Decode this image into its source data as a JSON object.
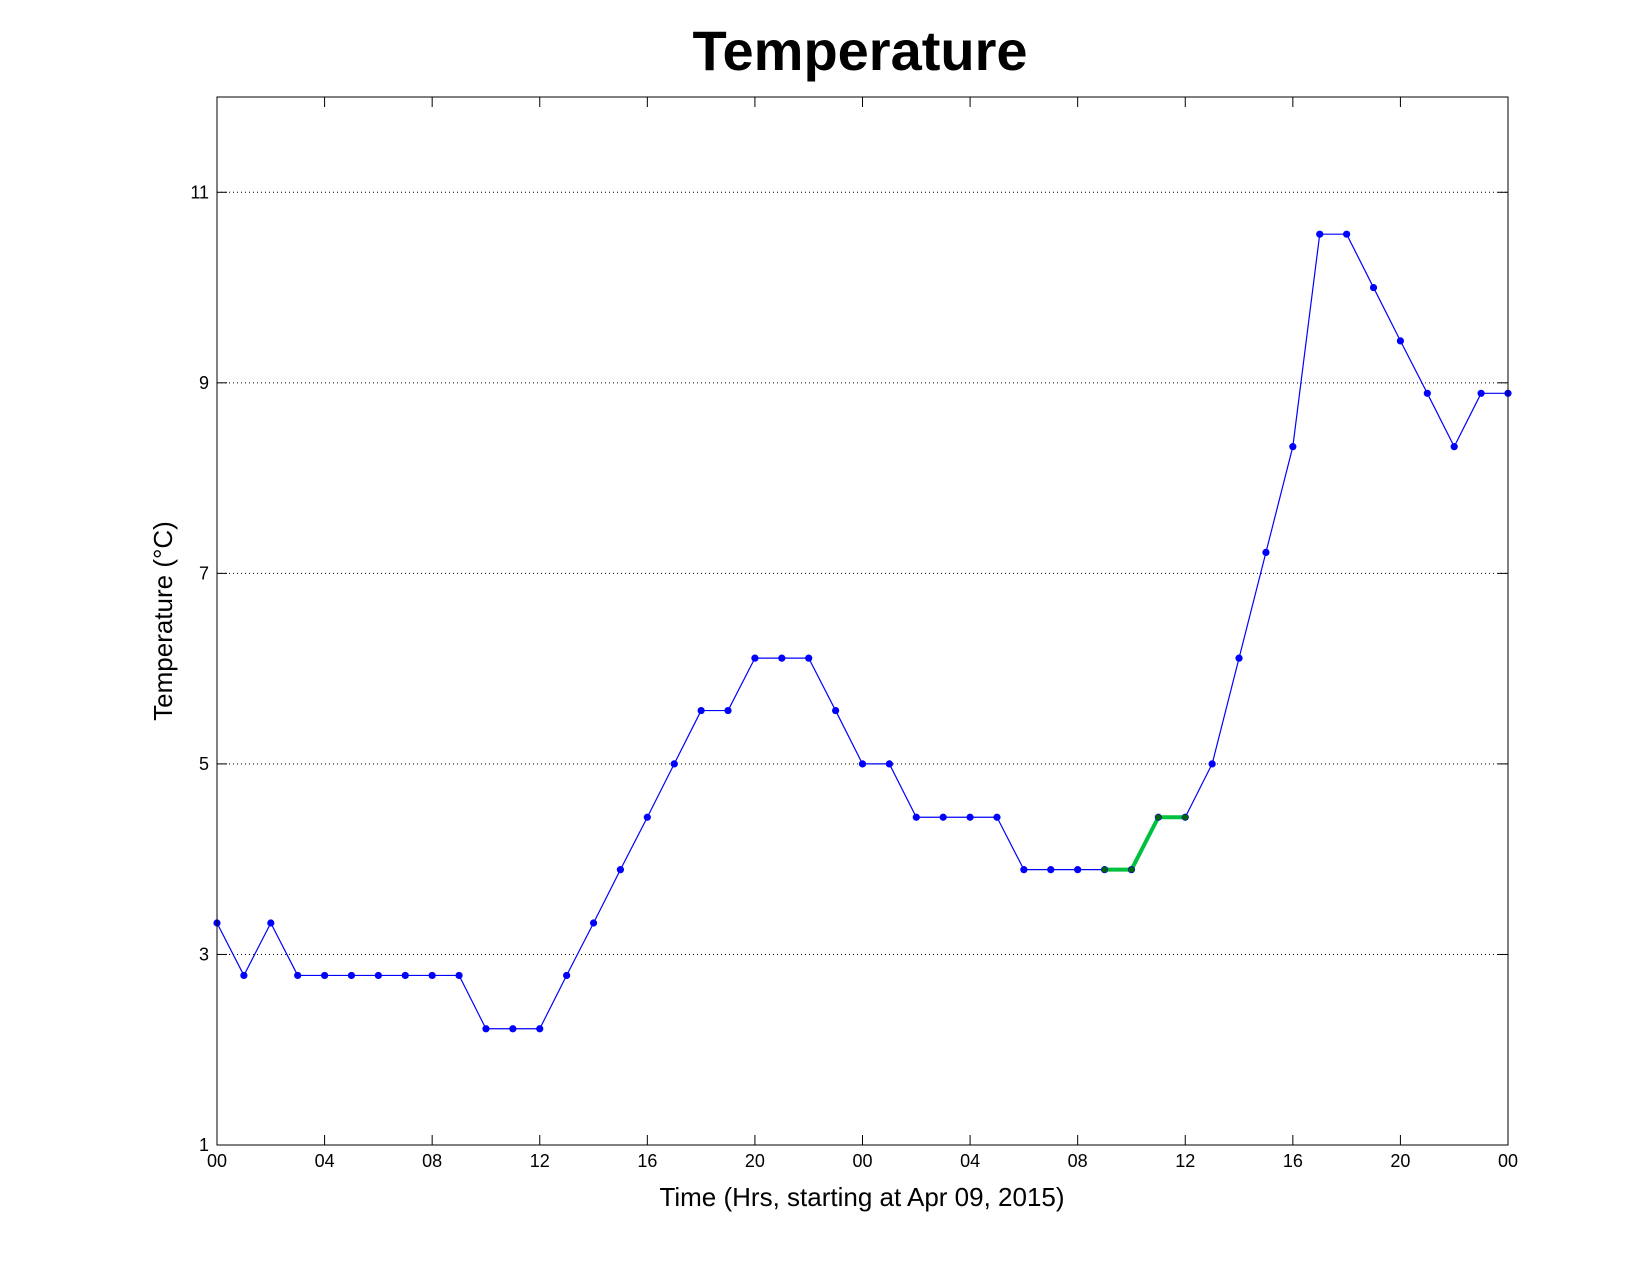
{
  "chart_data": {
    "type": "line",
    "title": "Temperature",
    "xlabel": "Time (Hrs, starting at Apr 09, 2015)",
    "ylabel": "Temperature (°C)",
    "xlim": [
      0,
      48
    ],
    "ylim": [
      1,
      12
    ],
    "x_ticks": [
      0,
      4,
      8,
      12,
      16,
      20,
      24,
      28,
      32,
      36,
      40,
      44,
      48
    ],
    "x_tick_labels": [
      "00",
      "04",
      "08",
      "12",
      "16",
      "20",
      "00",
      "04",
      "08",
      "12",
      "16",
      "20",
      "00"
    ],
    "y_ticks": [
      1,
      3,
      5,
      7,
      9,
      11
    ],
    "y_tick_labels": [
      "1",
      "3",
      "5",
      "7",
      "9",
      "11"
    ],
    "grid": "y-dotted",
    "x": [
      0,
      1,
      2,
      3,
      4,
      5,
      6,
      7,
      8,
      9,
      10,
      11,
      12,
      13,
      14,
      15,
      16,
      17,
      18,
      19,
      20,
      21,
      22,
      23,
      24,
      25,
      26,
      27,
      28,
      29,
      30,
      31,
      32,
      33,
      34,
      35,
      36,
      37,
      38,
      39,
      40,
      41,
      42,
      43,
      44,
      45,
      46,
      47,
      48
    ],
    "series": [
      {
        "color": "#0000ff",
        "values": [
          3.33,
          2.78,
          3.33,
          2.78,
          2.78,
          2.78,
          2.78,
          2.78,
          2.78,
          2.78,
          2.22,
          2.22,
          2.22,
          2.78,
          3.33,
          3.89,
          4.44,
          5.0,
          5.56,
          5.56,
          6.11,
          6.11,
          6.11,
          5.56,
          5.0,
          5.0,
          4.44,
          4.44,
          4.44,
          4.44,
          3.89,
          3.89,
          3.89,
          3.89,
          3.89,
          4.44,
          4.44,
          5.0,
          6.11,
          7.22,
          8.33,
          10.56,
          10.56,
          10.0,
          9.44,
          8.89,
          8.33,
          8.89,
          8.89
        ]
      },
      {
        "color": "#00c040",
        "x": [
          33,
          34,
          35,
          36
        ],
        "values": [
          3.89,
          3.89,
          4.44,
          4.44
        ]
      }
    ]
  }
}
